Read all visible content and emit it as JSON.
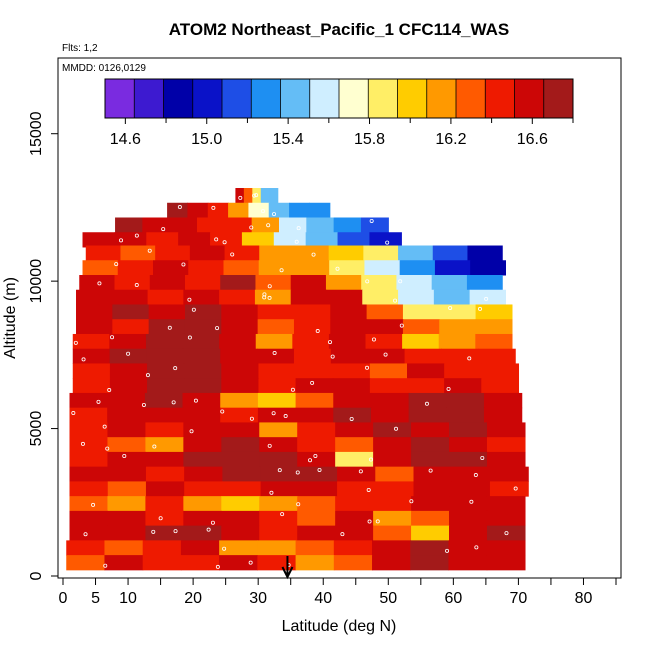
{
  "chart_data": {
    "type": "heatmap",
    "title": "ATOM2 Northeast_Pacific_1 CFC114_WAS",
    "flights_label": "Flts: 1,2",
    "dates_label": "MMDD: 0126,0129",
    "xlabel": "Latitude (deg N)",
    "ylabel": "Altitude (m)",
    "xlim": [
      0,
      85
    ],
    "ylim": [
      0,
      17500
    ],
    "x_ticks": [
      0,
      5,
      10,
      20,
      30,
      40,
      50,
      60,
      70,
      80
    ],
    "x_tick_labels": [
      "0",
      "5",
      "10",
      "20",
      "30",
      "40",
      "50",
      "60",
      "70",
      "80"
    ],
    "x_minor_ticks": [
      15,
      25,
      35,
      45,
      55,
      65,
      75,
      85
    ],
    "y_ticks": [
      0,
      5000,
      10000,
      15000
    ],
    "y_tick_labels": [
      "0",
      "5000",
      "10000",
      "15000"
    ],
    "colorbar": {
      "range": [
        14.5,
        16.8
      ],
      "tick_values": [
        14.6,
        15.0,
        15.4,
        15.8,
        16.2,
        16.6
      ],
      "tick_labels": [
        "14.6",
        "15.0",
        "15.4",
        "15.8",
        "16.2",
        "16.6"
      ],
      "colors": [
        "#7a2be0",
        "#3d1ad0",
        "#0000a8",
        "#0a12c8",
        "#1e4ee6",
        "#1e8ff2",
        "#64bdf6",
        "#cfeeff",
        "#ffffd0",
        "#ffee66",
        "#ffcc00",
        "#ff9900",
        "#ff5a00",
        "#ee1a00",
        "#cc0606",
        "#a31a1a"
      ]
    },
    "marker_latitude": 34.5,
    "bands": [
      {
        "alt": 12900,
        "lat_min": 26.5,
        "lat_max": 33,
        "values": [
          16.6,
          16.3,
          15.9,
          15.5,
          15.4
        ]
      },
      {
        "alt": 12400,
        "lat_min": 16,
        "lat_max": 41,
        "values": [
          16.7,
          16.6,
          16.5,
          16.2,
          15.7,
          15.4,
          15.3,
          15.3
        ]
      },
      {
        "alt": 11900,
        "lat_min": 8,
        "lat_max": 50,
        "values": [
          16.7,
          16.6,
          16.6,
          16.5,
          16.4,
          16.1,
          15.6,
          15.4,
          15.3,
          15.2
        ]
      },
      {
        "alt": 11400,
        "lat_min": 3,
        "lat_max": 52,
        "values": [
          16.6,
          16.6,
          16.5,
          16.6,
          16.4,
          16.0,
          15.6,
          15.4,
          15.2,
          15.0
        ]
      },
      {
        "alt": 10950,
        "lat_min": 3.5,
        "lat_max": 67.5,
        "values": [
          16.4,
          16.3,
          16.5,
          16.6,
          16.4,
          16.2,
          16.1,
          16.0,
          15.8,
          15.4,
          15.1,
          14.8
        ]
      },
      {
        "alt": 10450,
        "lat_min": 3,
        "lat_max": 68,
        "values": [
          16.3,
          16.5,
          16.6,
          16.5,
          16.3,
          16.2,
          16.1,
          15.8,
          15.6,
          15.3,
          15.0,
          14.9
        ]
      },
      {
        "alt": 9950,
        "lat_min": 2.5,
        "lat_max": 67.5,
        "values": [
          16.6,
          16.4,
          16.6,
          16.5,
          16.7,
          16.3,
          16.6,
          16.2,
          15.9,
          15.6,
          15.4,
          15.3
        ]
      },
      {
        "alt": 9450,
        "lat_min": 2,
        "lat_max": 68,
        "values": [
          16.6,
          16.6,
          16.4,
          16.6,
          16.5,
          16.2,
          16.6,
          16.6,
          15.8,
          15.6,
          15.5,
          15.6
        ]
      },
      {
        "alt": 8950,
        "lat_min": 2,
        "lat_max": 69,
        "values": [
          16.6,
          16.7,
          16.6,
          16.7,
          16.6,
          16.4,
          16.5,
          16.6,
          16.3,
          15.9,
          15.8,
          16.0
        ]
      },
      {
        "alt": 8450,
        "lat_min": 2,
        "lat_max": 69,
        "values": [
          16.6,
          16.5,
          16.7,
          16.7,
          16.6,
          16.3,
          16.4,
          16.6,
          16.6,
          16.3,
          16.1,
          16.2
        ]
      },
      {
        "alt": 7950,
        "lat_min": 1.5,
        "lat_max": 69,
        "values": [
          16.4,
          16.6,
          16.7,
          16.8,
          16.6,
          16.2,
          16.5,
          16.6,
          16.4,
          16.0,
          16.2,
          16.3
        ]
      },
      {
        "alt": 7450,
        "lat_min": 1.5,
        "lat_max": 69.5,
        "values": [
          16.6,
          16.7,
          16.7,
          16.8,
          16.6,
          16.6,
          16.5,
          16.6,
          16.6,
          16.4,
          16.4,
          16.4
        ]
      },
      {
        "alt": 6950,
        "lat_min": 1.5,
        "lat_max": 70,
        "values": [
          16.5,
          16.6,
          16.7,
          16.7,
          16.6,
          16.5,
          16.5,
          16.5,
          16.3,
          16.6,
          16.5,
          16.5
        ]
      },
      {
        "alt": 6450,
        "lat_min": 1.5,
        "lat_max": 70,
        "values": [
          16.4,
          16.6,
          16.7,
          16.7,
          16.6,
          16.5,
          16.6,
          16.6,
          16.5,
          16.4,
          16.6,
          16.5
        ]
      },
      {
        "alt": 5950,
        "lat_min": 1,
        "lat_max": 70.5,
        "values": [
          16.6,
          16.6,
          16.7,
          16.6,
          16.2,
          16.0,
          16.3,
          16.6,
          16.6,
          16.7,
          16.7,
          16.6
        ]
      },
      {
        "alt": 5450,
        "lat_min": 1,
        "lat_max": 70.5,
        "values": [
          16.5,
          16.6,
          16.6,
          16.6,
          16.5,
          16.6,
          16.6,
          16.7,
          16.6,
          16.8,
          16.7,
          16.6
        ]
      },
      {
        "alt": 4950,
        "lat_min": 1,
        "lat_max": 71,
        "values": [
          16.4,
          16.6,
          16.5,
          16.6,
          16.6,
          16.2,
          16.4,
          16.6,
          16.7,
          16.6,
          16.7,
          16.6
        ]
      },
      {
        "alt": 4450,
        "lat_min": 1,
        "lat_max": 71,
        "values": [
          16.4,
          16.3,
          16.2,
          16.6,
          16.7,
          16.6,
          16.5,
          16.3,
          16.6,
          16.7,
          16.6,
          16.5
        ]
      },
      {
        "alt": 3950,
        "lat_min": 1,
        "lat_max": 71,
        "values": [
          16.5,
          16.6,
          16.6,
          16.7,
          16.7,
          16.7,
          16.6,
          15.9,
          16.6,
          16.7,
          16.7,
          16.6
        ]
      },
      {
        "alt": 3450,
        "lat_min": 1,
        "lat_max": 71.5,
        "values": [
          16.6,
          16.6,
          16.5,
          16.6,
          16.8,
          16.7,
          16.7,
          16.6,
          16.3,
          16.6,
          16.6,
          16.6
        ]
      },
      {
        "alt": 2950,
        "lat_min": 1,
        "lat_max": 71.5,
        "values": [
          16.4,
          16.3,
          16.6,
          16.5,
          16.5,
          16.6,
          16.6,
          16.5,
          16.4,
          16.6,
          16.6,
          16.5
        ]
      },
      {
        "alt": 2450,
        "lat_min": 1,
        "lat_max": 71,
        "values": [
          16.3,
          16.2,
          16.4,
          16.2,
          16.0,
          16.2,
          16.3,
          16.4,
          16.5,
          16.6,
          16.6,
          16.6
        ]
      },
      {
        "alt": 1950,
        "lat_min": 1,
        "lat_max": 71,
        "values": [
          16.6,
          16.6,
          16.4,
          16.6,
          16.6,
          16.5,
          16.3,
          16.6,
          16.2,
          16.3,
          16.6,
          16.6
        ]
      },
      {
        "alt": 1450,
        "lat_min": 1,
        "lat_max": 71,
        "values": [
          16.6,
          16.6,
          16.7,
          16.7,
          16.6,
          16.5,
          16.6,
          16.6,
          16.3,
          16.0,
          16.6,
          16.7
        ]
      },
      {
        "alt": 950,
        "lat_min": 0.5,
        "lat_max": 71,
        "values": [
          16.5,
          16.3,
          16.5,
          16.6,
          16.2,
          16.1,
          16.3,
          16.4,
          16.6,
          16.7,
          16.6,
          16.6
        ]
      },
      {
        "alt": 450,
        "lat_min": 0.5,
        "lat_max": 71,
        "values": [
          16.3,
          16.6,
          16.5,
          16.5,
          16.6,
          16.4,
          16.2,
          16.3,
          16.6,
          16.7,
          16.6,
          16.6
        ]
      }
    ]
  }
}
